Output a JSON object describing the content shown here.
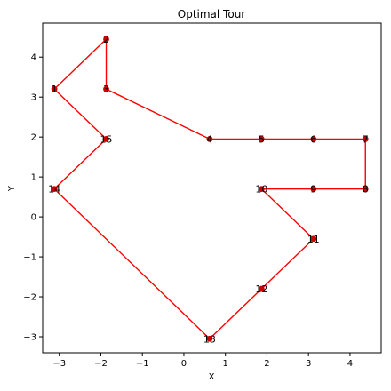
{
  "chart_data": {
    "type": "line",
    "title": "Optimal Tour",
    "xlabel": "X",
    "ylabel": "Y",
    "xlim": [
      -3.4,
      4.75
    ],
    "ylim": [
      -3.4,
      4.85
    ],
    "xticks": [
      -3,
      -2,
      -1,
      0,
      1,
      2,
      3,
      4
    ],
    "yticks": [
      -3,
      -2,
      -1,
      0,
      1,
      2,
      3,
      4
    ],
    "xtick_labels": [
      "−3",
      "−2",
      "−1",
      "0",
      "1",
      "2",
      "3",
      "4"
    ],
    "ytick_labels": [
      "−3",
      "−2",
      "−1",
      "0",
      "1",
      "2",
      "3",
      "4"
    ],
    "line_color": "#ff0000",
    "marker_color": "#cc0000",
    "grid": false,
    "nodes": [
      {
        "label": "1",
        "x": -3.12,
        "y": 3.2
      },
      {
        "label": "2",
        "x": -1.87,
        "y": 4.45
      },
      {
        "label": "3",
        "x": -1.87,
        "y": 3.2
      },
      {
        "label": "4",
        "x": 0.62,
        "y": 1.95
      },
      {
        "label": "5",
        "x": 1.87,
        "y": 1.95
      },
      {
        "label": "6",
        "x": 3.12,
        "y": 1.95
      },
      {
        "label": "7",
        "x": 4.37,
        "y": 1.95
      },
      {
        "label": "8",
        "x": 4.37,
        "y": 0.7
      },
      {
        "label": "9",
        "x": 3.12,
        "y": 0.7
      },
      {
        "label": "10",
        "x": 1.87,
        "y": 0.7
      },
      {
        "label": "11",
        "x": 3.12,
        "y": -0.55
      },
      {
        "label": "12",
        "x": 1.87,
        "y": -1.8
      },
      {
        "label": "13",
        "x": 0.62,
        "y": -3.05
      },
      {
        "label": "14",
        "x": -3.12,
        "y": 0.7
      },
      {
        "label": "15",
        "x": -1.87,
        "y": 1.95
      }
    ],
    "tour": [
      "1",
      "2",
      "3",
      "4",
      "5",
      "6",
      "7",
      "8",
      "9",
      "10",
      "11",
      "12",
      "13",
      "14",
      "15",
      "1"
    ]
  }
}
